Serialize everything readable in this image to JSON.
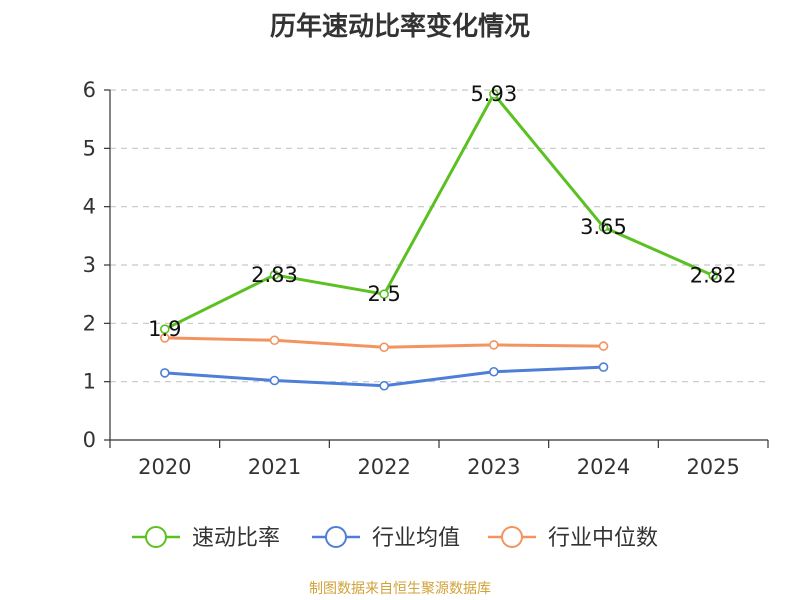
{
  "title": "历年速动比率变化情况",
  "source": "制图数据来自恒生聚源数据库",
  "chart_data": {
    "type": "line",
    "title": "历年速动比率变化情况",
    "categories": [
      "2020",
      "2021",
      "2022",
      "2023",
      "2024",
      "2025"
    ],
    "ylim": [
      0,
      6
    ],
    "yticks": [
      "0",
      "1",
      "2",
      "3",
      "4",
      "5",
      "6"
    ],
    "grid": true,
    "legend": "bottom",
    "series": [
      {
        "name": "速动比率",
        "color": "#5bc122",
        "values": [
          1.9,
          2.83,
          2.5,
          5.93,
          3.65,
          2.82
        ],
        "labels": [
          "1.9",
          "2.83",
          "2.5",
          "5.93",
          "3.65",
          "2.82"
        ]
      },
      {
        "name": "行业均值",
        "color": "#4d7fd8",
        "values": [
          1.15,
          1.02,
          0.93,
          1.17,
          1.25,
          null
        ]
      },
      {
        "name": "行业中位数",
        "color": "#f3935f",
        "values": [
          1.75,
          1.71,
          1.59,
          1.63,
          1.61,
          null
        ]
      }
    ]
  }
}
